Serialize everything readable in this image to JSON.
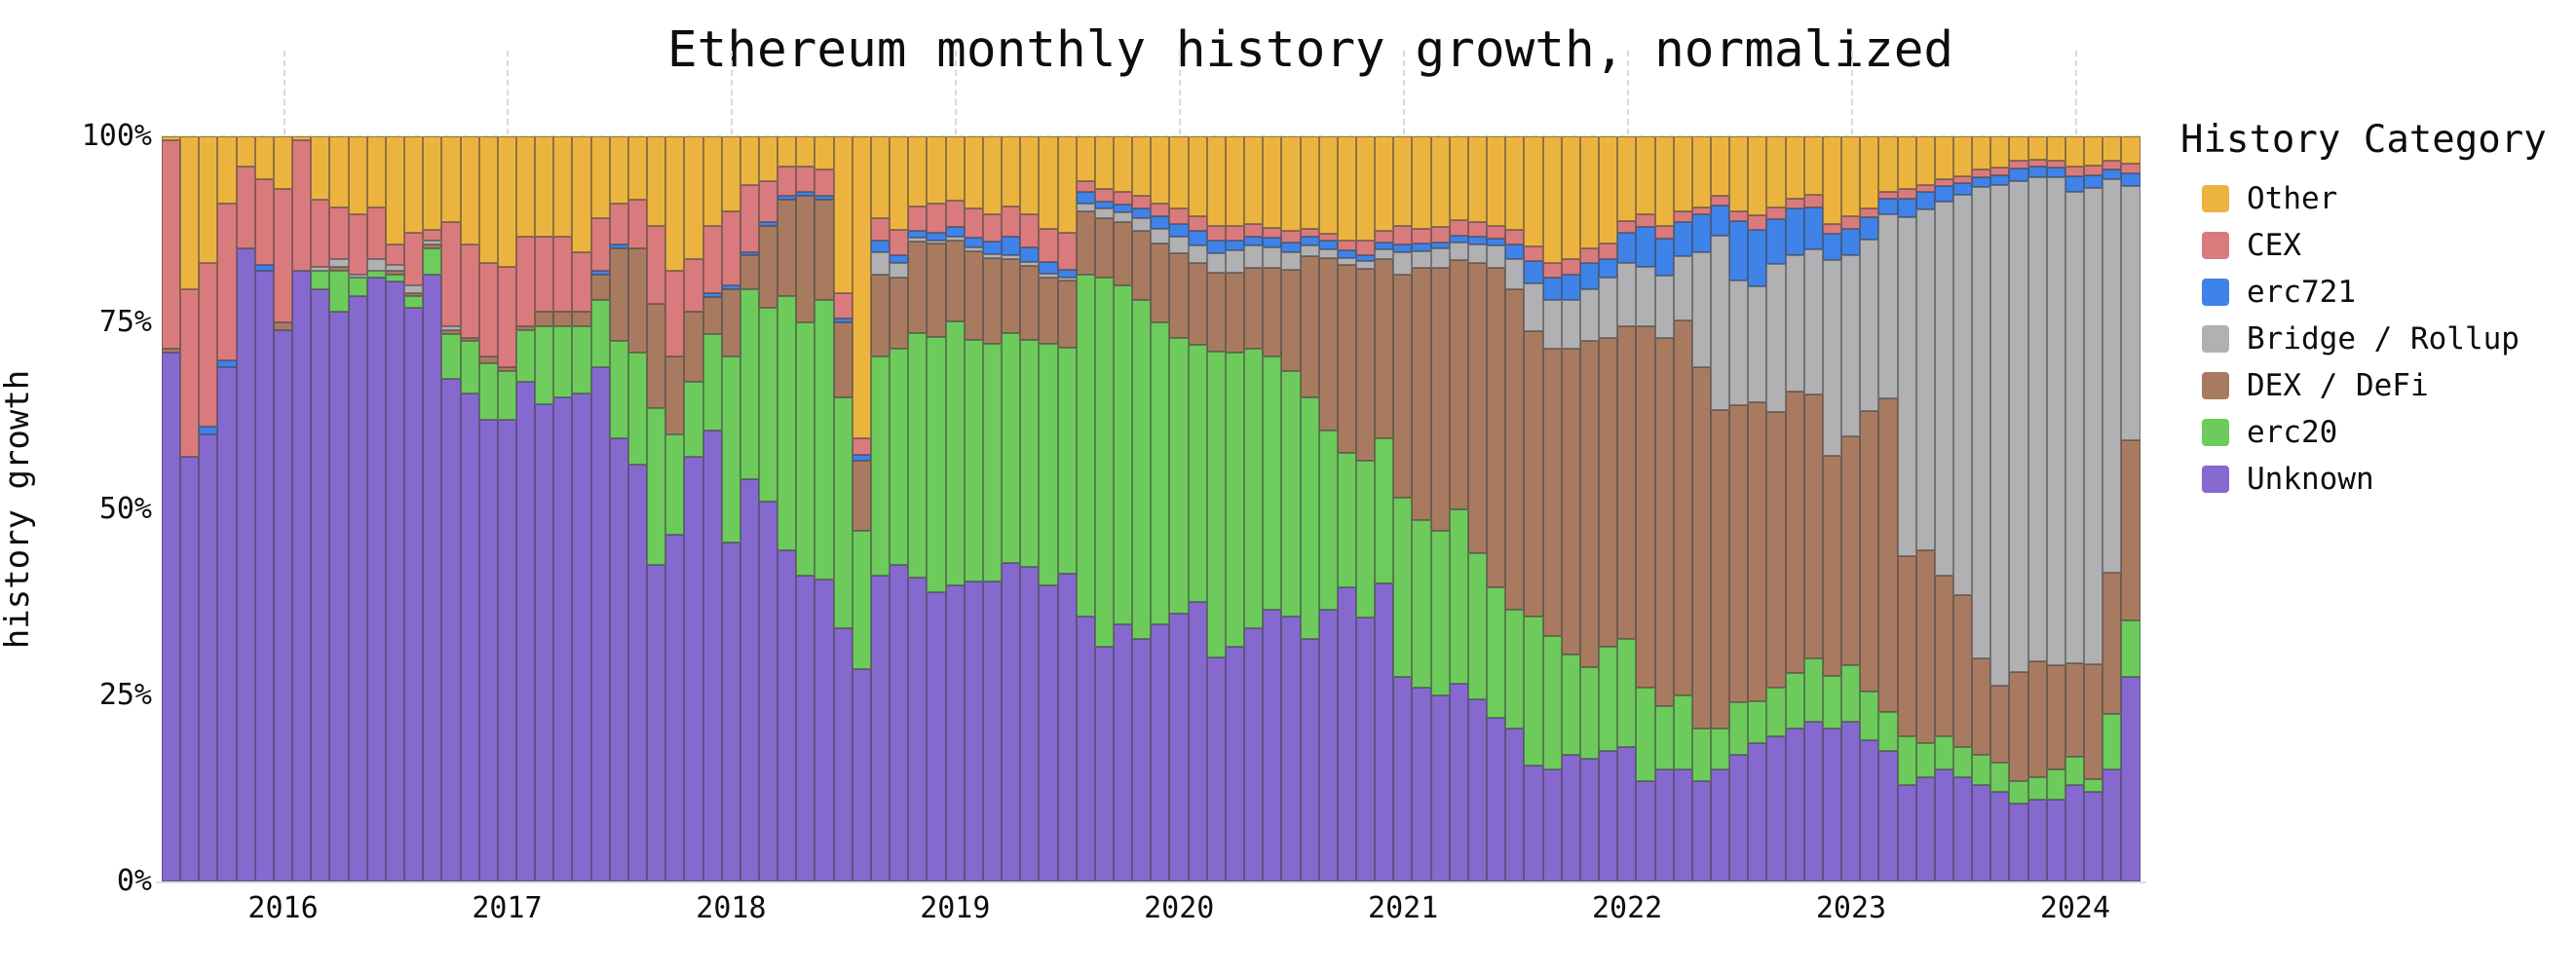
{
  "title": "Ethereum monthly history growth, normalized",
  "y_axis": {
    "label": "history growth",
    "ticks": [
      "0%",
      "25%",
      "50%",
      "75%",
      "100%"
    ]
  },
  "x_axis": {
    "ticks": [
      "2016",
      "2017",
      "2018",
      "2019",
      "2020",
      "2021",
      "2022",
      "2023",
      "2024"
    ]
  },
  "legend": {
    "title": "History Category",
    "items": [
      "Other",
      "CEX",
      "erc721",
      "Bridge / Rollup",
      "DEX / DeFi",
      "erc20",
      "Unknown"
    ]
  },
  "chart_data": {
    "type": "bar",
    "stacked": true,
    "normalized": true,
    "title": "Ethereum monthly history growth, normalized",
    "xlabel": "",
    "ylabel": "history growth",
    "ylim": [
      0,
      100
    ],
    "legend_position": "right",
    "grid": "dashed year ticks above plot",
    "x": [
      "2015-07",
      "2015-08",
      "2015-09",
      "2015-10",
      "2015-11",
      "2015-12",
      "2016-01",
      "2016-02",
      "2016-03",
      "2016-04",
      "2016-05",
      "2016-06",
      "2016-07",
      "2016-08",
      "2016-09",
      "2016-10",
      "2016-11",
      "2016-12",
      "2017-01",
      "2017-02",
      "2017-03",
      "2017-04",
      "2017-05",
      "2017-06",
      "2017-07",
      "2017-08",
      "2017-09",
      "2017-10",
      "2017-11",
      "2017-12",
      "2018-01",
      "2018-02",
      "2018-03",
      "2018-04",
      "2018-05",
      "2018-06",
      "2018-07",
      "2018-08",
      "2018-09",
      "2018-10",
      "2018-11",
      "2018-12",
      "2019-01",
      "2019-02",
      "2019-03",
      "2019-04",
      "2019-05",
      "2019-06",
      "2019-07",
      "2019-08",
      "2019-09",
      "2019-10",
      "2019-11",
      "2019-12",
      "2020-01",
      "2020-02",
      "2020-03",
      "2020-04",
      "2020-05",
      "2020-06",
      "2020-07",
      "2020-08",
      "2020-09",
      "2020-10",
      "2020-11",
      "2020-12",
      "2021-01",
      "2021-02",
      "2021-03",
      "2021-04",
      "2021-05",
      "2021-06",
      "2021-07",
      "2021-08",
      "2021-09",
      "2021-10",
      "2021-11",
      "2021-12",
      "2022-01",
      "2022-02",
      "2022-03",
      "2022-04",
      "2022-05",
      "2022-06",
      "2022-07",
      "2022-08",
      "2022-09",
      "2022-10",
      "2022-11",
      "2022-12",
      "2023-01",
      "2023-02",
      "2023-03",
      "2023-04",
      "2023-05",
      "2023-06",
      "2023-07",
      "2023-08",
      "2023-09",
      "2023-10",
      "2023-11",
      "2023-12",
      "2024-01",
      "2024-02",
      "2024-03",
      "2024-04"
    ],
    "series": [
      {
        "name": "Unknown",
        "color": "#8569cf",
        "values": [
          71,
          57,
          60,
          69,
          85,
          82,
          74,
          82,
          79.5,
          76.5,
          78.5,
          81,
          80.5,
          77,
          81.5,
          67.5,
          65.5,
          62,
          62,
          67,
          64,
          65,
          65.5,
          69,
          59.5,
          56,
          42.5,
          46.5,
          57,
          60.5,
          45.5,
          54,
          51,
          44.5,
          41,
          40.5,
          34,
          28.5,
          41,
          42.5,
          41,
          39,
          40,
          40.5,
          40.5,
          43,
          42.5,
          40,
          41.5,
          35.5,
          31.5,
          34.5,
          32.5,
          34.5,
          36,
          37.5,
          30,
          31.5,
          34,
          36.5,
          35.5,
          32.5,
          36.5,
          39.5,
          35.5,
          40,
          27.5,
          26,
          25,
          26.5,
          24.5,
          22,
          20.5,
          15.5,
          15,
          17,
          16.5,
          17.5,
          18,
          13.5,
          15,
          15,
          13.5,
          15,
          17,
          18.5,
          19.5,
          20.5,
          21.5,
          20.5,
          21.5,
          19,
          17.5,
          13,
          14,
          15,
          14,
          13,
          12,
          10.5,
          11,
          11,
          13,
          12,
          15,
          27.5
        ]
      },
      {
        "name": "erc20",
        "color": "#6dcb5c",
        "values": [
          0,
          0,
          0,
          0,
          0,
          0,
          0,
          0,
          2.5,
          5.5,
          2.5,
          1,
          1,
          1.5,
          3.5,
          6,
          7,
          7.5,
          6.5,
          7,
          10.5,
          9.5,
          9,
          9,
          13,
          15,
          21,
          13.5,
          10,
          13,
          25,
          25.5,
          26,
          34,
          34,
          37.5,
          31,
          18.5,
          29.5,
          29,
          33,
          34.5,
          35.5,
          32.5,
          32,
          31,
          30.5,
          32.5,
          30.5,
          46,
          49.5,
          45.5,
          45.5,
          40.5,
          37,
          34.5,
          41,
          39.5,
          37.5,
          34,
          33,
          32.5,
          24,
          18,
          21,
          19.5,
          24,
          22.5,
          22,
          23.5,
          19.5,
          17.5,
          16,
          20,
          18,
          13.5,
          12.3,
          14,
          14.5,
          12.5,
          8.5,
          10,
          7,
          5.5,
          7,
          5.5,
          6.5,
          7.5,
          8.5,
          7,
          7.5,
          6.5,
          5.3,
          6.5,
          4.5,
          4.5,
          4,
          4,
          4,
          3,
          3,
          4,
          3.7,
          1.7,
          7.5,
          7.6
        ]
      },
      {
        "name": "DEX / DeFi",
        "color": "#a87b61",
        "values": [
          0.5,
          0,
          0,
          0,
          0,
          0,
          1,
          0,
          0,
          0.5,
          0,
          0,
          0.5,
          0.5,
          0.5,
          0.5,
          0.5,
          1,
          0.5,
          0.5,
          2,
          2,
          2,
          3.5,
          12.5,
          14,
          14,
          10.5,
          9.5,
          5,
          9,
          4.5,
          11,
          13,
          17,
          13.5,
          10,
          9.5,
          11,
          9.5,
          12.3,
          12.5,
          11,
          12,
          11.6,
          10,
          10,
          9,
          9,
          8.5,
          8,
          8.5,
          9.3,
          10.6,
          11.3,
          11,
          10.6,
          10.8,
          10.8,
          11.9,
          13.6,
          18.9,
          23.1,
          25.2,
          25.8,
          24,
          30,
          33.8,
          35.4,
          33.4,
          39,
          42.8,
          43,
          38.3,
          38.5,
          41,
          43.7,
          41.5,
          42,
          48.5,
          49.5,
          50.3,
          48.5,
          42.8,
          39.8,
          40,
          37,
          37.8,
          35.4,
          29.5,
          30.8,
          37.7,
          42,
          24.2,
          26,
          21.5,
          20.5,
          13,
          10.3,
          14.6,
          15.5,
          14,
          12.6,
          15.5,
          18.9,
          24.1
        ]
      },
      {
        "name": "Bridge / Rollup",
        "color": "#b1b1b3",
        "values": [
          0,
          0,
          0,
          0,
          0,
          0,
          0,
          0,
          0.5,
          1,
          0.5,
          1.5,
          0.7,
          1,
          0.5,
          0.5,
          0,
          0,
          0,
          0,
          0,
          0,
          0,
          0,
          0,
          0,
          0,
          0,
          0,
          0,
          0,
          0,
          0,
          0,
          0,
          0,
          0,
          0,
          3,
          2,
          0.5,
          0.5,
          0.5,
          0.5,
          0.5,
          0.5,
          0.5,
          0.5,
          0.5,
          1,
          1.3,
          1.3,
          1.7,
          2,
          2.3,
          2.3,
          2.6,
          3,
          3,
          2.7,
          2.3,
          1.5,
          1.2,
          1,
          1,
          1.3,
          3,
          2.3,
          2.6,
          2.3,
          2.5,
          3,
          4,
          6.5,
          6.5,
          6.5,
          7,
          8,
          8.5,
          8,
          8.3,
          8.6,
          15.5,
          23.5,
          16.8,
          15.5,
          19.9,
          18.2,
          19.5,
          26.1,
          24.2,
          22.9,
          24.8,
          45.4,
          45.7,
          50.3,
          53.6,
          63.2,
          67.2,
          65.9,
          65,
          65.5,
          63.3,
          63.9,
          52.9,
          34.1
        ]
      },
      {
        "name": "erc721",
        "color": "#3f82e8",
        "values": [
          0,
          0,
          1,
          1,
          0,
          0.7,
          0,
          0,
          0,
          0,
          0,
          0,
          0,
          0,
          0,
          0,
          0,
          0,
          0,
          0,
          0,
          0,
          0,
          0.5,
          0.5,
          0,
          0,
          0,
          0,
          0.5,
          0.5,
          0.5,
          0.5,
          0.5,
          0.5,
          0.5,
          0.5,
          0.7,
          1.5,
          1,
          1,
          1,
          1.3,
          1.3,
          1.7,
          2.5,
          2,
          1.5,
          1,
          1.5,
          1,
          1,
          1.3,
          1.7,
          1.7,
          2,
          1.7,
          1.3,
          1.3,
          1.3,
          1.3,
          1.1,
          1.2,
          1,
          0.8,
          1,
          1,
          1,
          0.8,
          1,
          1,
          1,
          2,
          3,
          3,
          3.5,
          3.5,
          2.6,
          4,
          5.3,
          5,
          4.6,
          5,
          4,
          8,
          7.5,
          6,
          6.3,
          5.6,
          3.6,
          3.6,
          3,
          2,
          2.6,
          2.3,
          2,
          1.6,
          1.3,
          1.3,
          1.7,
          1.4,
          1.3,
          2,
          1.7,
          1.3,
          1.7
        ]
      },
      {
        "name": "CEX",
        "color": "#d97b7d",
        "values": [
          28,
          22.5,
          22,
          21,
          11,
          11.5,
          18,
          17.5,
          9,
          7,
          8,
          7,
          2.8,
          7,
          1.5,
          14,
          12.5,
          12.5,
          13.5,
          12,
          10,
          10,
          8,
          7,
          5.5,
          6.5,
          10.5,
          11.5,
          7,
          9,
          10,
          9,
          5.5,
          4,
          3.5,
          3.5,
          3.5,
          2.3,
          3,
          3.5,
          3.3,
          4,
          3.5,
          4,
          3.7,
          4,
          4.5,
          4.5,
          5,
          1.5,
          1.7,
          1.7,
          1.7,
          1.7,
          2,
          2,
          2,
          2,
          1.7,
          1.3,
          1.6,
          1.1,
          1,
          1.3,
          2,
          1.5,
          2.5,
          2,
          2,
          2,
          2,
          1.7,
          2,
          2,
          2,
          2,
          2,
          2,
          1.6,
          1.8,
          1.7,
          1.5,
          1,
          1.3,
          1.3,
          2,
          1.6,
          1.3,
          1.7,
          1.3,
          1.7,
          1.3,
          1,
          1.3,
          1,
          1,
          1,
          1,
          1,
          1,
          1,
          1,
          1.4,
          1.3,
          1.2,
          1.3
        ]
      },
      {
        "name": "Other",
        "color": "#ecb43f",
        "values": [
          0.5,
          20.5,
          17,
          9,
          4,
          5.8,
          7,
          0.5,
          8.5,
          9.5,
          10.5,
          9.5,
          14.5,
          13,
          12.5,
          11.5,
          14.5,
          17,
          17.5,
          13.5,
          13.5,
          13.5,
          15.5,
          11,
          9,
          8.5,
          12,
          18,
          16.5,
          12,
          10,
          6.5,
          6,
          4,
          4,
          4.5,
          21,
          40.5,
          11,
          12.5,
          9.4,
          9,
          8.7,
          9.7,
          10.5,
          9.5,
          10.5,
          12.5,
          13,
          6,
          7,
          7.5,
          8,
          9,
          9.7,
          10.7,
          12,
          12,
          11.7,
          12.3,
          12.7,
          12.4,
          13,
          14,
          14,
          12.7,
          12,
          12.4,
          12.2,
          11.3,
          11.5,
          12,
          12.5,
          14.7,
          17,
          16.5,
          15,
          14.4,
          11.4,
          10.4,
          12,
          10,
          9.5,
          8,
          10,
          10.5,
          9.5,
          8.4,
          7.8,
          11.7,
          10.7,
          9.6,
          7.4,
          7,
          6.5,
          5.7,
          5.3,
          4.5,
          4.2,
          3.3,
          3.1,
          3.2,
          4,
          3.9,
          3.2,
          3.7
        ]
      }
    ]
  }
}
